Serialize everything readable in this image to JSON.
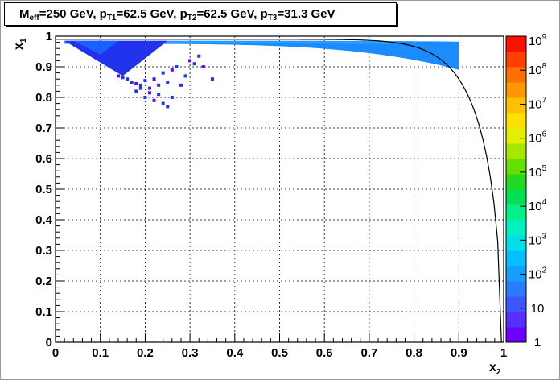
{
  "chart_data": {
    "type": "heatmap",
    "title_parts": [
      {
        "text": "M",
        "sub": "eff"
      },
      {
        "text": "=250 GeV, p",
        "sub": "T1"
      },
      {
        "text": "=62.5 GeV, p",
        "sub": "T2"
      },
      {
        "text": "=62.5 GeV, p",
        "sub": "T3"
      },
      {
        "text": "=31.3 GeV",
        "sub": ""
      }
    ],
    "xlabel": {
      "base": "x",
      "sub": "2"
    },
    "ylabel": {
      "base": "x",
      "sub": "1"
    },
    "xlim": [
      0,
      1
    ],
    "ylim": [
      0,
      1
    ],
    "x_ticks": [
      "0",
      "0.1",
      "0.2",
      "0.3",
      "0.4",
      "0.5",
      "0.6",
      "0.7",
      "0.8",
      "0.9",
      "1"
    ],
    "y_ticks": [
      "0",
      "0.1",
      "0.2",
      "0.3",
      "0.4",
      "0.5",
      "0.6",
      "0.7",
      "0.8",
      "0.9",
      "1"
    ],
    "grid": true,
    "colorbar": {
      "scale": "log",
      "labels": [
        {
          "base": "1",
          "exp": ""
        },
        {
          "base": "10",
          "exp": ""
        },
        {
          "base": "10",
          "exp": "2"
        },
        {
          "base": "10",
          "exp": "3"
        },
        {
          "base": "10",
          "exp": "4"
        },
        {
          "base": "10",
          "exp": "5"
        },
        {
          "base": "10",
          "exp": "6"
        },
        {
          "base": "10",
          "exp": "7"
        },
        {
          "base": "10",
          "exp": "8"
        },
        {
          "base": "10",
          "exp": "9"
        }
      ],
      "colors": [
        "#6a00ff",
        "#5530ff",
        "#3f55ff",
        "#2a7bff",
        "#149fff",
        "#00c0ff",
        "#00dfe8",
        "#00f0c0",
        "#00f08a",
        "#00e050",
        "#22d820",
        "#66e000",
        "#a8e800",
        "#e0f000",
        "#ffe000",
        "#ffc000",
        "#ff9800",
        "#ff7000",
        "#ff4000",
        "#ff1000"
      ]
    },
    "boundary_curve": {
      "x_min": 0.0,
      "x_max": 0.995,
      "note": "kinematic boundary: x1 = 0.99 near x2=0, falling to 0 at x2 ~ 0.995"
    },
    "dense_regions": [
      {
        "name": "upper-band",
        "x_range": [
          0.02,
          0.9
        ],
        "y_top": 0.985,
        "y_bottom_start": 0.975,
        "y_bottom_end": 0.89,
        "level": "10^1"
      },
      {
        "name": "triangle",
        "vertices_xy": [
          [
            0.02,
            0.985
          ],
          [
            0.25,
            0.985
          ],
          [
            0.15,
            0.87
          ]
        ],
        "level": "10^1"
      }
    ],
    "scatter_points": [
      [
        0.14,
        0.87
      ],
      [
        0.15,
        0.865
      ],
      [
        0.16,
        0.86
      ],
      [
        0.17,
        0.85
      ],
      [
        0.18,
        0.845
      ],
      [
        0.19,
        0.84
      ],
      [
        0.2,
        0.855
      ],
      [
        0.21,
        0.83
      ],
      [
        0.22,
        0.86
      ],
      [
        0.23,
        0.84
      ],
      [
        0.24,
        0.88
      ],
      [
        0.25,
        0.85
      ],
      [
        0.26,
        0.89
      ],
      [
        0.27,
        0.9
      ],
      [
        0.29,
        0.87
      ],
      [
        0.31,
        0.91
      ],
      [
        0.33,
        0.9
      ],
      [
        0.35,
        0.86
      ],
      [
        0.18,
        0.82
      ],
      [
        0.2,
        0.8
      ],
      [
        0.22,
        0.79
      ],
      [
        0.24,
        0.78
      ],
      [
        0.25,
        0.77
      ],
      [
        0.26,
        0.8
      ],
      [
        0.21,
        0.815
      ],
      [
        0.19,
        0.83
      ],
      [
        0.23,
        0.81
      ],
      [
        0.28,
        0.84
      ],
      [
        0.3,
        0.92
      ],
      [
        0.32,
        0.935
      ]
    ]
  }
}
